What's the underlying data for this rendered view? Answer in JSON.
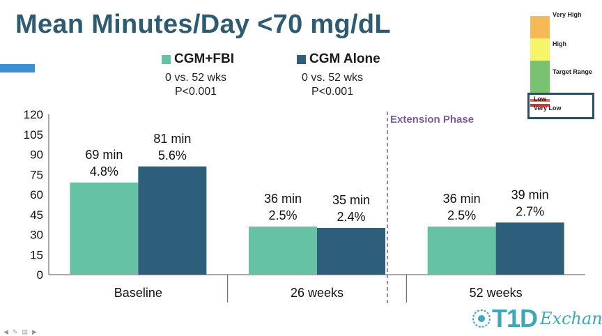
{
  "title": "Mean Minutes/Day <70 mg/dL",
  "legend": [
    {
      "name": "CGM+FBI",
      "color": "#66c2a5",
      "note_line1": "0 vs. 52 wks",
      "note_line2": "P<0.001"
    },
    {
      "name": "CGM Alone",
      "color": "#2e5f7a",
      "note_line1": "0 vs. 52 wks",
      "note_line2": "P<0.001"
    }
  ],
  "extension_label": "Extension Phase",
  "gauge": {
    "very_high": "Very High",
    "high": "High",
    "target": "Target Range",
    "low": "Low",
    "very_low": "Very Low",
    "colors": {
      "very_high": "#f7b955",
      "high": "#f6f56a",
      "target": "#79c272",
      "low": "#e36c4c",
      "very_low": "#c73a34"
    }
  },
  "logo": {
    "mark": "T1D",
    "sub": "Exchange"
  },
  "chart_data": {
    "type": "bar",
    "categories": [
      "Baseline",
      "26 weeks",
      "52 weeks"
    ],
    "ylim": [
      0,
      120
    ],
    "yticks": [
      0,
      15,
      30,
      45,
      60,
      75,
      90,
      105,
      120
    ],
    "series": [
      {
        "name": "CGM+FBI",
        "color": "#66c2a5",
        "values": [
          69,
          36,
          36
        ],
        "labels": [
          [
            "69 min",
            "4.8%"
          ],
          [
            "36 min",
            "2.5%"
          ],
          [
            "36 min",
            "2.5%"
          ]
        ]
      },
      {
        "name": "CGM Alone",
        "color": "#2e5f7a",
        "values": [
          81,
          35,
          39
        ],
        "labels": [
          [
            "81 min",
            "5.6%"
          ],
          [
            "35 min",
            "2.4%"
          ],
          [
            "39 min",
            "2.7%"
          ]
        ]
      }
    ]
  }
}
